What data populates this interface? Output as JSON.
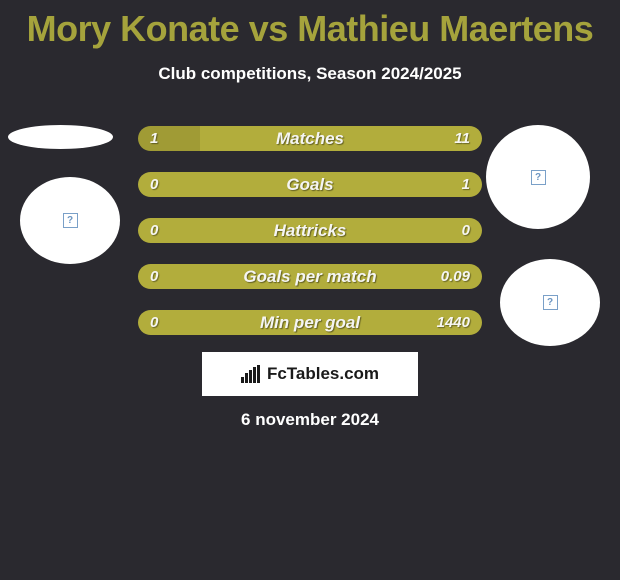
{
  "title": "Mory Konate vs Mathieu Maertens",
  "subtitle": "Club competitions, Season 2024/2025",
  "date": "6 november 2024",
  "brand": "FcTables.com",
  "colors": {
    "background": "#2a292f",
    "accent": "#a5a33c",
    "barA": "#a09b35",
    "barB": "#b2ad3c",
    "text_light": "#ffffff"
  },
  "bars": [
    {
      "label": "Matches",
      "left_value": "1",
      "right_value": "11",
      "left_pct": 18,
      "right_pct": 82
    },
    {
      "label": "Goals",
      "left_value": "0",
      "right_value": "1",
      "left_pct": 0,
      "right_pct": 100
    },
    {
      "label": "Hattricks",
      "left_value": "0",
      "right_value": "0",
      "left_pct": 0,
      "right_pct": 100
    },
    {
      "label": "Goals per match",
      "left_value": "0",
      "right_value": "0.09",
      "left_pct": 0,
      "right_pct": 100
    },
    {
      "label": "Min per goal",
      "left_value": "0",
      "right_value": "1440",
      "left_pct": 0,
      "right_pct": 100
    }
  ],
  "avatars": {
    "ellipse_top_left": true,
    "left": "placeholder",
    "top_right": "placeholder",
    "right": "placeholder"
  }
}
